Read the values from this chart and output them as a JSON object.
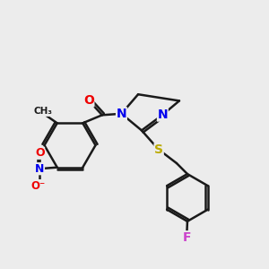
{
  "background_color": "#ececec",
  "bond_color": "#1a1a1a",
  "bond_width": 1.8,
  "atom_colors": {
    "C": "#1a1a1a",
    "N": "#0000ee",
    "O": "#ee0000",
    "S": "#bbaa00",
    "F": "#cc44cc"
  },
  "figsize": [
    3.0,
    3.0
  ],
  "dpi": 100
}
